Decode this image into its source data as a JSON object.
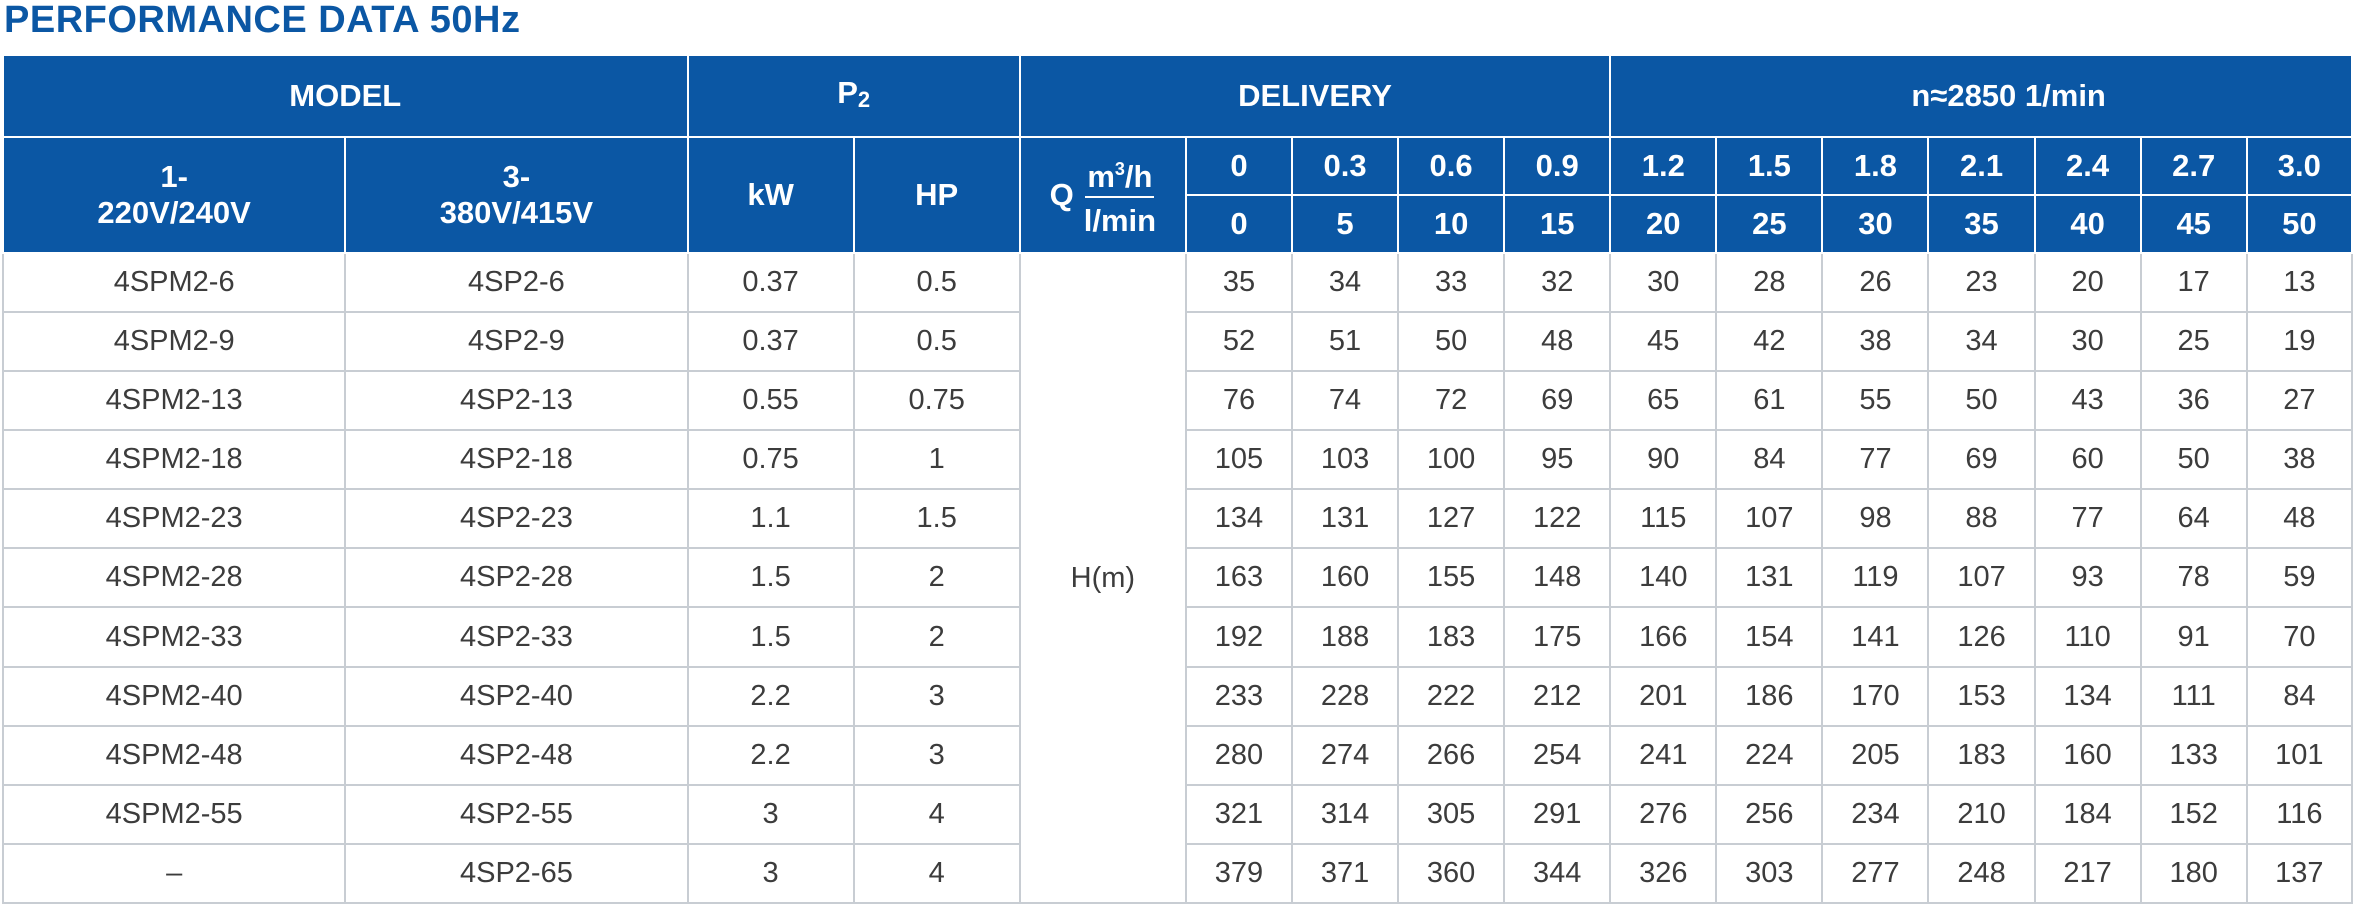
{
  "title": "PERFORMANCE DATA 50Hz",
  "header": {
    "model": "MODEL",
    "p2_main": "P",
    "p2_sub": "2",
    "delivery": "DELIVERY",
    "speed": "n≈2850  1/min",
    "single_phase_line1": "1-",
    "single_phase_line2": "220V/240V",
    "three_phase_line1": "3-",
    "three_phase_line2": "380V/415V",
    "kw": "kW",
    "hp": "HP",
    "q": "Q",
    "m3h_main": "m",
    "m3h_sup": "3",
    "m3h_tail": "/h",
    "lmin": "l/min",
    "head": "H(m)"
  },
  "flow_m3h": [
    "0",
    "0.3",
    "0.6",
    "0.9",
    "1.2",
    "1.5",
    "1.8",
    "2.1",
    "2.4",
    "2.7",
    "3.0"
  ],
  "flow_lmin": [
    "0",
    "5",
    "10",
    "15",
    "20",
    "25",
    "30",
    "35",
    "40",
    "45",
    "50"
  ],
  "rows": [
    {
      "m1": "4SPM2-6",
      "m3": "4SP2-6",
      "kw": "0.37",
      "hp": "0.5",
      "h": [
        "35",
        "34",
        "33",
        "32",
        "30",
        "28",
        "26",
        "23",
        "20",
        "17",
        "13"
      ]
    },
    {
      "m1": "4SPM2-9",
      "m3": "4SP2-9",
      "kw": "0.37",
      "hp": "0.5",
      "h": [
        "52",
        "51",
        "50",
        "48",
        "45",
        "42",
        "38",
        "34",
        "30",
        "25",
        "19"
      ]
    },
    {
      "m1": "4SPM2-13",
      "m3": "4SP2-13",
      "kw": "0.55",
      "hp": "0.75",
      "h": [
        "76",
        "74",
        "72",
        "69",
        "65",
        "61",
        "55",
        "50",
        "43",
        "36",
        "27"
      ]
    },
    {
      "m1": "4SPM2-18",
      "m3": "4SP2-18",
      "kw": "0.75",
      "hp": "1",
      "h": [
        "105",
        "103",
        "100",
        "95",
        "90",
        "84",
        "77",
        "69",
        "60",
        "50",
        "38"
      ]
    },
    {
      "m1": "4SPM2-23",
      "m3": "4SP2-23",
      "kw": "1.1",
      "hp": "1.5",
      "h": [
        "134",
        "131",
        "127",
        "122",
        "115",
        "107",
        "98",
        "88",
        "77",
        "64",
        "48"
      ]
    },
    {
      "m1": "4SPM2-28",
      "m3": "4SP2-28",
      "kw": "1.5",
      "hp": "2",
      "h": [
        "163",
        "160",
        "155",
        "148",
        "140",
        "131",
        "119",
        "107",
        "93",
        "78",
        "59"
      ]
    },
    {
      "m1": "4SPM2-33",
      "m3": "4SP2-33",
      "kw": "1.5",
      "hp": "2",
      "h": [
        "192",
        "188",
        "183",
        "175",
        "166",
        "154",
        "141",
        "126",
        "110",
        "91",
        "70"
      ]
    },
    {
      "m1": "4SPM2-40",
      "m3": "4SP2-40",
      "kw": "2.2",
      "hp": "3",
      "h": [
        "233",
        "228",
        "222",
        "212",
        "201",
        "186",
        "170",
        "153",
        "134",
        "111",
        "84"
      ]
    },
    {
      "m1": "4SPM2-48",
      "m3": "4SP2-48",
      "kw": "2.2",
      "hp": "3",
      "h": [
        "280",
        "274",
        "266",
        "254",
        "241",
        "224",
        "205",
        "183",
        "160",
        "133",
        "101"
      ]
    },
    {
      "m1": "4SPM2-55",
      "m3": "4SP2-55",
      "kw": "3",
      "hp": "4",
      "h": [
        "321",
        "314",
        "305",
        "291",
        "276",
        "256",
        "234",
        "210",
        "184",
        "152",
        "116"
      ]
    },
    {
      "m1": "–",
      "m3": "4SP2-65",
      "kw": "3",
      "hp": "4",
      "h": [
        "379",
        "371",
        "360",
        "344",
        "326",
        "303",
        "277",
        "248",
        "217",
        "180",
        "137"
      ]
    }
  ],
  "colors": {
    "header_blue": "#0b57a4",
    "title_blue": "#0b57a4",
    "grid_gray": "#c8cdd3",
    "body_text": "#3c3c3c"
  }
}
